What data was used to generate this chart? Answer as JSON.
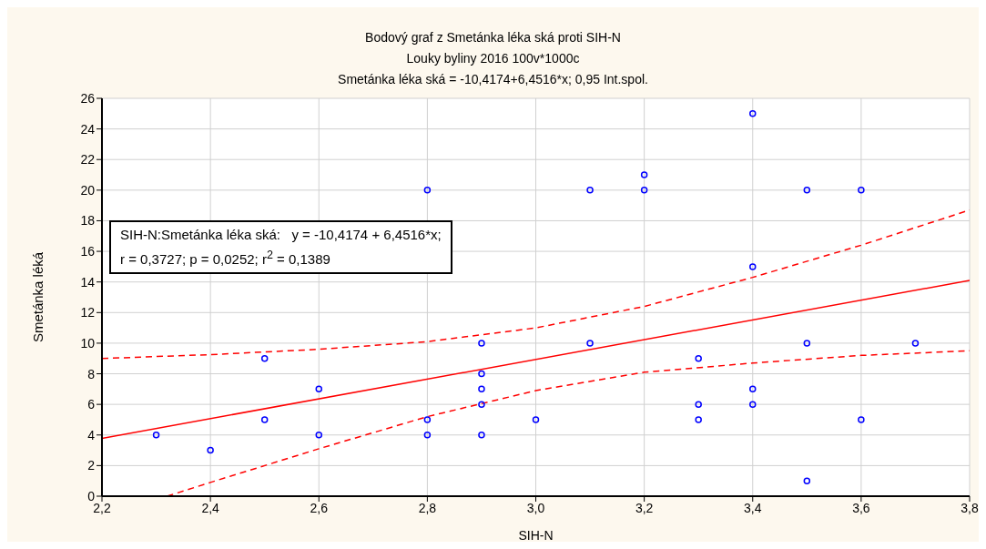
{
  "chart_data": {
    "type": "scatter",
    "title": "Bodový graf z Smetánka léka ská proti SIH-N",
    "subtitle": "Louky byliny 2016 100v*1000c\nSmetánka léka ská = -10,4174+6,4516*x; 0,95 Int.spol.",
    "xlabel": "SIH-N",
    "ylabel": "Smetánka léká",
    "annotations": [
      "SIH-N:Smetánka léka ská:   y = -10,4174 + 6,4516*x;",
      "r = 0,3727; p = 0,0252; r$^{2}$ = 0,1389"
    ],
    "series": [
      {
        "color": "#0000ff",
        "marker": "circle",
        "x": [
          2.3,
          2.4,
          2.5,
          2.5,
          2.6,
          2.6,
          2.8,
          2.8,
          2.8,
          2.9,
          2.9,
          2.9,
          2.9,
          2.9,
          3.0,
          3.1,
          3.1,
          3.2,
          3.2,
          3.3,
          3.3,
          3.3,
          3.4,
          3.4,
          3.4,
          3.4,
          3.5,
          3.5,
          3.5,
          3.6,
          3.6,
          3.7
        ],
        "values": [
          4,
          3,
          9,
          5,
          7,
          4,
          20,
          5,
          4,
          10,
          8,
          7,
          6,
          4,
          5,
          20,
          10,
          21,
          20,
          9,
          6,
          5,
          25,
          15,
          7,
          6,
          20,
          10,
          1,
          20,
          5,
          10
        ]
      },
      {
        "type": "line",
        "color": "#ff0000",
        "line_style": "solid",
        "marker": "none",
        "x": [
          2.2,
          3.8
        ],
        "values": [
          3.78,
          14.1
        ]
      },
      {
        "type": "line",
        "color": "#ff0000",
        "line_style": "dashed",
        "marker": "none",
        "x": [
          2.2,
          2.4,
          2.6,
          2.8,
          3.0,
          3.2,
          3.4,
          3.6,
          3.8
        ],
        "values": [
          9.0,
          9.25,
          9.6,
          10.1,
          11.0,
          12.4,
          14.3,
          16.4,
          18.7
        ]
      },
      {
        "type": "line",
        "color": "#ff0000",
        "line_style": "dashed",
        "marker": "none",
        "x": [
          2.32,
          2.4,
          2.6,
          2.8,
          3.0,
          3.2,
          3.4,
          3.6,
          3.8
        ],
        "values": [
          0,
          0.9,
          3.1,
          5.2,
          6.9,
          8.1,
          8.7,
          9.2,
          9.5
        ]
      }
    ],
    "xlim": [
      2.2,
      3.8
    ],
    "xticks": [
      {
        "value": 2.2,
        "label": "2,2"
      },
      {
        "value": 2.4,
        "label": "2,4"
      },
      {
        "value": 2.6,
        "label": "2,6"
      },
      {
        "value": 2.8,
        "label": "2,8"
      },
      {
        "value": 3.0,
        "label": "3,0"
      },
      {
        "value": 3.2,
        "label": "3,2"
      },
      {
        "value": 3.4,
        "label": "3,4"
      },
      {
        "value": 3.6,
        "label": "3,6"
      },
      {
        "value": 3.8,
        "label": "3,8"
      }
    ],
    "ylim": [
      0,
      26
    ],
    "yticks": [
      0,
      2,
      4,
      6,
      8,
      10,
      12,
      14,
      16,
      18,
      20,
      22,
      24,
      26
    ],
    "grid": true
  }
}
